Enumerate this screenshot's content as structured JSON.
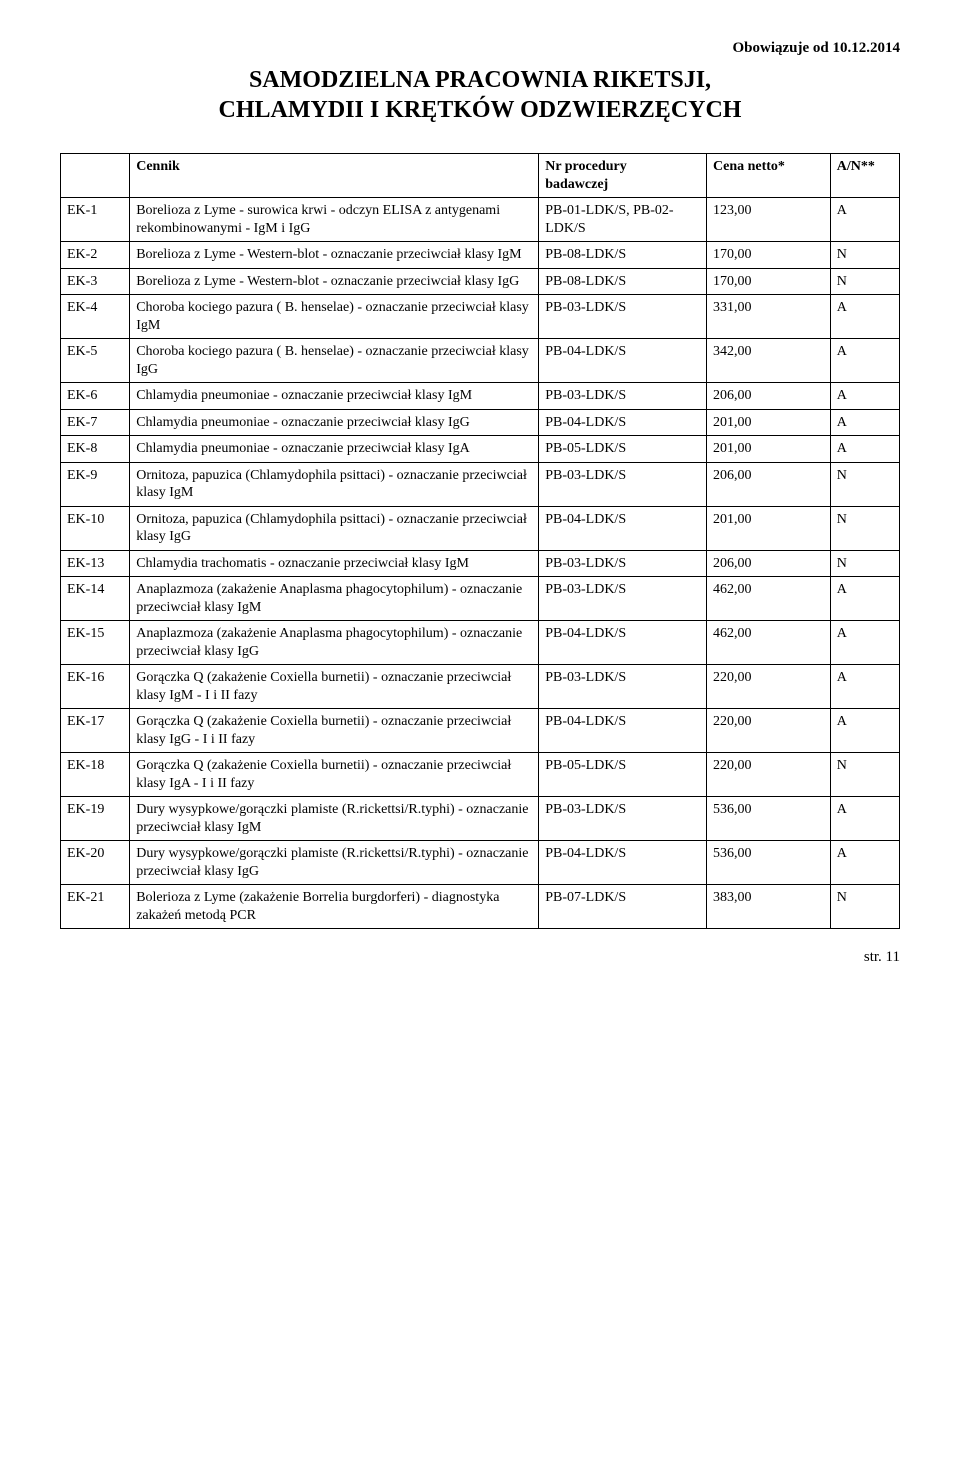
{
  "header": {
    "date_line": "Obowiązuje od 10.12.2014",
    "title_line1": "SAMODZIELNA PRACOWNIA RIKETSJI,",
    "title_line2": "CHLAMYDII I KRĘTKÓW ODZWIERZĘCYCH"
  },
  "columns": {
    "c1": "",
    "c2": "Cennik",
    "c3_line1": "Nr procedury",
    "c3_line2": "badawczej",
    "c4": "Cena netto*",
    "c5": "A/N**"
  },
  "rows": [
    {
      "code": "EK-1",
      "desc": "Borelioza z Lyme - surowica krwi - odczyn ELISA z antygenami rekombinowanymi - IgM i IgG",
      "proc": "PB-01-LDK/S, PB-02-LDK/S",
      "price": "123,00",
      "an": "A"
    },
    {
      "code": "EK-2",
      "desc": "Borelioza z Lyme - Western-blot - oznaczanie przeciwciał klasy IgM",
      "proc": "PB-08-LDK/S",
      "price": "170,00",
      "an": "N"
    },
    {
      "code": "EK-3",
      "desc": "Borelioza z Lyme - Western-blot - oznaczanie przeciwciał klasy IgG",
      "proc": "PB-08-LDK/S",
      "price": "170,00",
      "an": "N"
    },
    {
      "code": "EK-4",
      "desc": "Choroba kociego pazura ( B. henselae) - oznaczanie przeciwciał klasy IgM",
      "proc": "PB-03-LDK/S",
      "price": "331,00",
      "an": "A"
    },
    {
      "code": "EK-5",
      "desc": "Choroba kociego pazura ( B. henselae) - oznaczanie przeciwciał klasy IgG",
      "proc": "PB-04-LDK/S",
      "price": "342,00",
      "an": "A"
    },
    {
      "code": "EK-6",
      "desc": " Chlamydia pneumoniae - oznaczanie przeciwciał klasy IgM",
      "proc": "PB-03-LDK/S",
      "price": "206,00",
      "an": "A"
    },
    {
      "code": "EK-7",
      "desc": "Chlamydia pneumoniae - oznaczanie przeciwciał klasy IgG",
      "proc": "PB-04-LDK/S",
      "price": "201,00",
      "an": "A"
    },
    {
      "code": "EK-8",
      "desc": "Chlamydia pneumoniae - oznaczanie przeciwciał klasy IgA",
      "proc": "PB-05-LDK/S",
      "price": "201,00",
      "an": "A"
    },
    {
      "code": "EK-9",
      "desc": "Ornitoza, papuzica (Chlamydophila psittaci) - oznaczanie przeciwciał klasy IgM",
      "proc": "PB-03-LDK/S",
      "price": "206,00",
      "an": "N"
    },
    {
      "code": "EK-10",
      "desc": "Ornitoza, papuzica (Chlamydophila psittaci) - oznaczanie przeciwciał klasy IgG",
      "proc": "PB-04-LDK/S",
      "price": "201,00",
      "an": "N"
    },
    {
      "code": "EK-13",
      "desc": "Chlamydia trachomatis - oznaczanie przeciwciał klasy IgM",
      "proc": "PB-03-LDK/S",
      "price": "206,00",
      "an": "N"
    },
    {
      "code": "EK-14",
      "desc": " Anaplazmoza (zakażenie Anaplasma phagocytophilum) - oznaczanie przeciwciał klasy IgM",
      "proc": "PB-03-LDK/S",
      "price": "462,00",
      "an": "A"
    },
    {
      "code": "EK-15",
      "desc": "Anaplazmoza (zakażenie Anaplasma phagocytophilum) - oznaczanie przeciwciał klasy IgG",
      "proc": "PB-04-LDK/S",
      "price": "462,00",
      "an": "A"
    },
    {
      "code": "EK-16",
      "desc": "Gorączka Q (zakażenie Coxiella burnetii) - oznaczanie przeciwciał klasy IgM - I i II fazy",
      "proc": "PB-03-LDK/S",
      "price": "220,00",
      "an": "A"
    },
    {
      "code": "EK-17",
      "desc": "Gorączka Q (zakażenie Coxiella burnetii) - oznaczanie przeciwciał klasy IgG - I i II fazy",
      "proc": "PB-04-LDK/S",
      "price": "220,00",
      "an": "A"
    },
    {
      "code": "EK-18",
      "desc": "Gorączka Q (zakażenie Coxiella burnetii) - oznaczanie przeciwciał klasy IgA - I i II fazy",
      "proc": "PB-05-LDK/S",
      "price": "220,00",
      "an": "N"
    },
    {
      "code": "EK-19",
      "desc": "Dury wysypkowe/gorączki plamiste (R.rickettsi/R.typhi) - oznaczanie przeciwciał klasy IgM",
      "proc": "PB-03-LDK/S",
      "price": "536,00",
      "an": "A"
    },
    {
      "code": "EK-20",
      "desc": "Dury wysypkowe/gorączki plamiste (R.rickettsi/R.typhi) - oznaczanie przeciwciał klasy IgG",
      "proc": "PB-04-LDK/S",
      "price": "536,00",
      "an": "A"
    },
    {
      "code": "EK-21",
      "desc": "Bolerioza z Lyme (zakażenie Borrelia burgdorferi) - diagnostyka zakażeń metodą PCR",
      "proc": "PB-07-LDK/S",
      "price": "383,00",
      "an": "N"
    }
  ],
  "footer": {
    "page": "str. 11"
  }
}
